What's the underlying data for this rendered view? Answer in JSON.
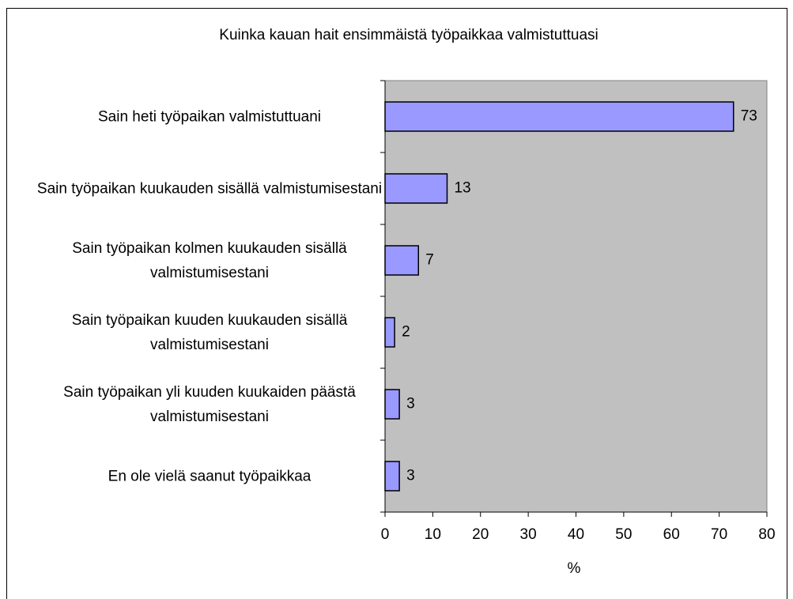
{
  "chart_data": {
    "type": "barh",
    "title": "Kuinka kauan hait ensimmäistä työpaikkaa valmistuttuasi",
    "categories": [
      "Sain heti työpaikan valmistuttuani",
      "Sain työpaikan kuukauden sisällä valmistumisestani",
      "Sain työpaikan kolmen kuukauden sisällä valmistumisestani",
      "Sain työpaikan kuuden kuukauden sisällä valmistumisestani",
      "Sain työpaikan yli kuuden kuukaiden päästä valmistumisestani",
      "En ole vielä saanut työpaikkaa"
    ],
    "values": [
      73,
      13,
      7,
      2,
      3,
      3
    ],
    "color": "#9999ff",
    "xlim": [
      0,
      80
    ],
    "xticks": [
      0,
      10,
      20,
      30,
      40,
      50,
      60,
      70,
      80
    ],
    "xlabel": "%",
    "grid": false
  }
}
